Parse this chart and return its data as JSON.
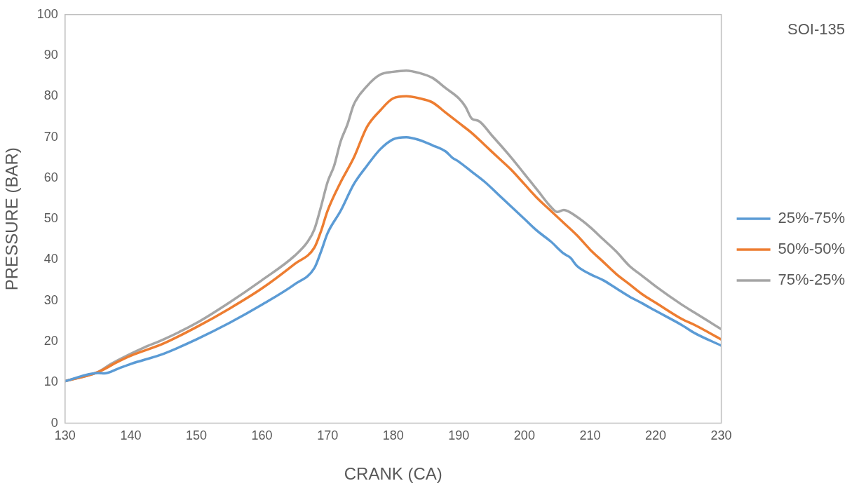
{
  "chart_data": {
    "type": "line",
    "xlabel": "CRANK (CA)",
    "ylabel": "PRESSURE (BAR)",
    "annotations": [
      "SOI-135"
    ],
    "xlim": [
      130,
      230
    ],
    "xticks": [
      130,
      140,
      150,
      160,
      170,
      180,
      190,
      200,
      210,
      220,
      230
    ],
    "ylim": [
      0,
      100
    ],
    "yticks": [
      0,
      10,
      20,
      30,
      40,
      50,
      60,
      70,
      80,
      90,
      100
    ],
    "grid": false,
    "legend": "right",
    "marker": "none",
    "line_style": "solid",
    "series": [
      {
        "name": "25%-75%",
        "color": "#5b9bd5",
        "x": [
          130,
          135,
          136,
          138,
          140,
          145,
          150,
          155,
          160,
          165,
          168,
          169,
          170,
          172,
          174,
          176,
          178,
          180,
          182,
          184,
          186,
          188,
          189,
          190,
          192,
          194,
          196,
          198,
          200,
          202,
          204,
          206,
          207,
          208,
          210,
          212,
          214,
          216,
          218,
          220,
          224,
          226,
          230
        ],
        "values": [
          10.3,
          12.3,
          12.2,
          13.3,
          14.5,
          17,
          20.5,
          24.5,
          29,
          34,
          38,
          42,
          46.5,
          52,
          58.5,
          63,
          67,
          69.5,
          70,
          69.3,
          68,
          66.5,
          65,
          64,
          61.5,
          59,
          56,
          53,
          50,
          47,
          44.5,
          41.5,
          40.5,
          38.5,
          36.5,
          35,
          33,
          31,
          29.3,
          27.5,
          24,
          22,
          19
        ]
      },
      {
        "name": "50%-50%",
        "color": "#ed7d31",
        "x": [
          130,
          135,
          138,
          140,
          145,
          150,
          155,
          160,
          165,
          168,
          169,
          170,
          172,
          174,
          176,
          178,
          180,
          182,
          184,
          186,
          188,
          190,
          192,
          194,
          196,
          198,
          200,
          202,
          204,
          206,
          208,
          210,
          212,
          214,
          216,
          218,
          220,
          224,
          226,
          230
        ],
        "values": [
          10.3,
          12.5,
          15,
          16.5,
          19.5,
          23.5,
          28,
          33,
          39,
          43,
          47,
          52,
          59,
          65,
          72.5,
          76.5,
          79.5,
          80,
          79.5,
          78.5,
          76,
          73.5,
          71,
          68,
          65,
          62,
          58.5,
          55,
          52,
          49,
          46,
          42.5,
          39.5,
          36.5,
          34,
          31.5,
          29.5,
          25.5,
          24,
          20.5
        ]
      },
      {
        "name": "75%-25%",
        "color": "#a5a5a5",
        "x": [
          130,
          135,
          137,
          140,
          142,
          145,
          150,
          155,
          160,
          165,
          167,
          168,
          169,
          170,
          171,
          172,
          173,
          174,
          176,
          178,
          180,
          182,
          184,
          186,
          188,
          190,
          191,
          192,
          193,
          195,
          198,
          200,
          202,
          204,
          205,
          206,
          208,
          210,
          212,
          214,
          216,
          218,
          220,
          224,
          226,
          230
        ],
        "values": [
          10.3,
          12.5,
          14.5,
          17,
          18.5,
          20.5,
          24.5,
          29.5,
          35,
          41,
          44.5,
          47.5,
          53,
          59,
          63,
          69,
          73,
          78,
          82.5,
          85.3,
          86,
          86.3,
          85.7,
          84.5,
          82,
          79.5,
          77.5,
          74.5,
          74,
          70.5,
          65,
          61,
          57,
          53,
          51.7,
          52.2,
          50.5,
          48,
          45,
          42,
          38.5,
          36,
          33.5,
          29,
          27,
          23
        ]
      }
    ]
  }
}
